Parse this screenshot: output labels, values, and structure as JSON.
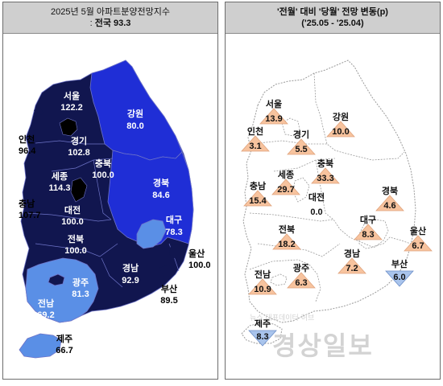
{
  "left": {
    "title_line1": "2025년 5월 아파트분양전망지수",
    "title_prefix": ": ",
    "title_national": "전국 93.3",
    "regions": [
      {
        "id": "seoul",
        "name": "서울",
        "value": "122.2"
      },
      {
        "id": "incheon",
        "name": "인천",
        "value": "96.4"
      },
      {
        "id": "gyeonggi",
        "name": "경기",
        "value": "102.8"
      },
      {
        "id": "gangwon",
        "name": "강원",
        "value": "80.0"
      },
      {
        "id": "chungbuk",
        "name": "충북",
        "value": "100.0"
      },
      {
        "id": "sejong",
        "name": "세종",
        "value": "114.3"
      },
      {
        "id": "chungnam",
        "name": "충남",
        "value": "107.7"
      },
      {
        "id": "daejeon",
        "name": "대전",
        "value": "100.0"
      },
      {
        "id": "gyeongbuk",
        "name": "경북",
        "value": "84.6"
      },
      {
        "id": "daegu",
        "name": "대구",
        "value": "78.3"
      },
      {
        "id": "jeonbuk",
        "name": "전북",
        "value": "100.0"
      },
      {
        "id": "ulsan",
        "name": "울산",
        "value": "100.0"
      },
      {
        "id": "gwangju",
        "name": "광주",
        "value": "81.3"
      },
      {
        "id": "gyeongnam",
        "name": "경남",
        "value": "92.9"
      },
      {
        "id": "busan",
        "name": "부산",
        "value": "89.5"
      },
      {
        "id": "jeonnam",
        "name": "전남",
        "value": "69.2"
      },
      {
        "id": "jeju",
        "name": "제주",
        "value": "66.7"
      }
    ]
  },
  "right": {
    "title_line1": "'전월' 대비 '당월' 전망 변동(p)",
    "title_line2": "('25.05 - '25.04)",
    "regions": [
      {
        "id": "seoul",
        "name": "서울",
        "value": "13.9",
        "dir": "up"
      },
      {
        "id": "gangwon",
        "name": "강원",
        "value": "10.0",
        "dir": "up"
      },
      {
        "id": "incheon",
        "name": "인천",
        "value": "3.1",
        "dir": "up"
      },
      {
        "id": "gyeonggi",
        "name": "경기",
        "value": "5.5",
        "dir": "up"
      },
      {
        "id": "chungbuk",
        "name": "충북",
        "value": "33.3",
        "dir": "up"
      },
      {
        "id": "sejong",
        "name": "세종",
        "value": "29.7",
        "dir": "up"
      },
      {
        "id": "chungnam",
        "name": "충남",
        "value": "15.4",
        "dir": "up"
      },
      {
        "id": "daejeon",
        "name": "대전",
        "value": "0.0",
        "dir": "none"
      },
      {
        "id": "gyeongbuk",
        "name": "경북",
        "value": "4.6",
        "dir": "up"
      },
      {
        "id": "daegu",
        "name": "대구",
        "value": "8.3",
        "dir": "up"
      },
      {
        "id": "ulsan",
        "name": "울산",
        "value": "6.7",
        "dir": "up"
      },
      {
        "id": "jeonbuk",
        "name": "전북",
        "value": "18.2",
        "dir": "up"
      },
      {
        "id": "gyeongnam",
        "name": "경남",
        "value": "7.2",
        "dir": "up"
      },
      {
        "id": "busan",
        "name": "부산",
        "value": "6.0",
        "dir": "down"
      },
      {
        "id": "jeonnam",
        "name": "전남",
        "value": "10.9",
        "dir": "up"
      },
      {
        "id": "gwangju",
        "name": "광주",
        "value": "6.3",
        "dir": "up"
      },
      {
        "id": "jeju",
        "name": "제주",
        "value": "8.3",
        "dir": "down"
      }
    ]
  },
  "colors": {
    "navy": "#11164f",
    "royal": "#1f2ed6",
    "light_blue": "#5a8fe6",
    "up_fill": "#f7c39e",
    "down_fill": "#a9c4ec"
  },
  "watermark": {
    "text": "경상일보",
    "subtext": "뉴스 대표데이터 허브"
  }
}
